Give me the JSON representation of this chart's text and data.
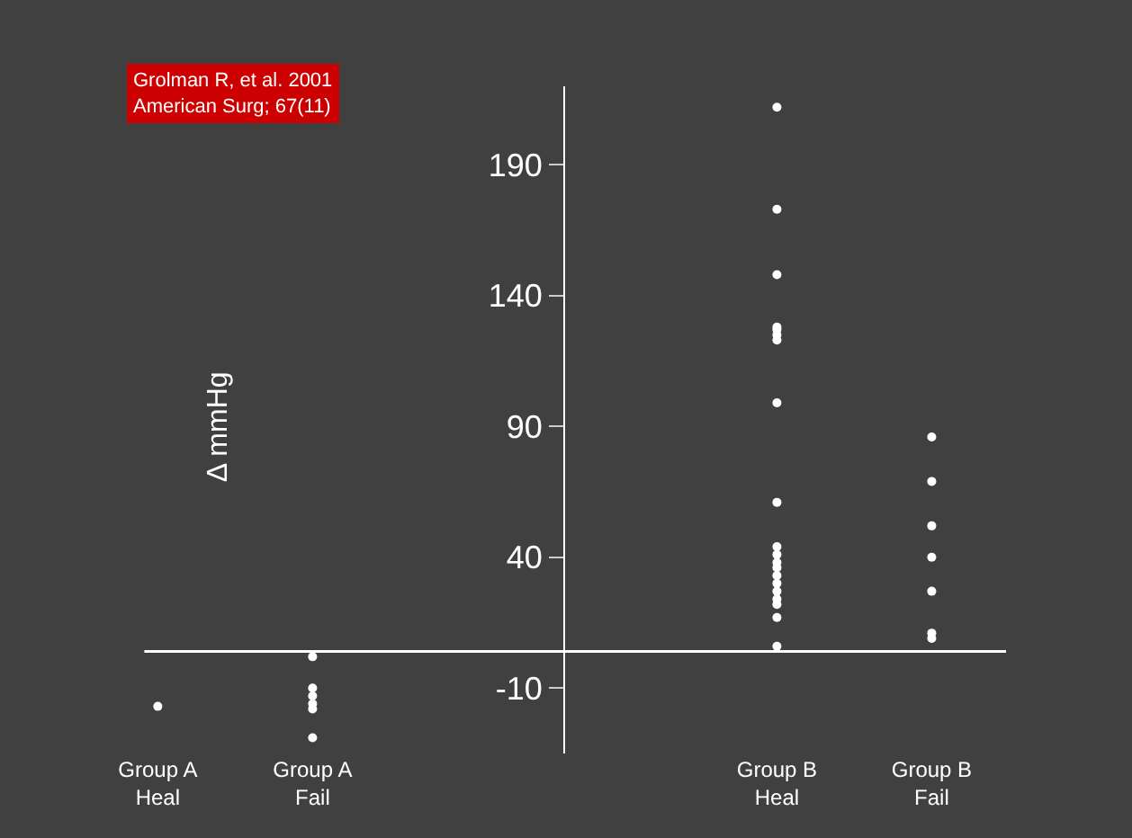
{
  "chart_data": {
    "type": "scatter",
    "ylabel": "Δ mmHg",
    "categories": [
      "Group A\nHeal",
      "Group A\nFail",
      null,
      null,
      "Group B\nHeal",
      "Group B\nFail"
    ],
    "series": [
      {
        "color": "#ffffff",
        "x": [
          "Group A\nHeal"
        ],
        "values": [
          -17
        ]
      },
      {
        "color": "#ffffff",
        "x": [
          "Group A\nFail",
          "Group A\nFail",
          "Group A\nFail",
          "Group A\nFail",
          "Group A\nFail",
          "Group A\nFail"
        ],
        "values": [
          2,
          -10,
          -13,
          -16,
          -18,
          -29
        ]
      },
      {
        "color": "#ffffff",
        "x": [
          "Group B\nHeal",
          "Group B\nHeal",
          "Group B\nHeal",
          "Group B\nHeal",
          "Group B\nHeal",
          "Group B\nHeal",
          "Group B\nHeal",
          "Group B\nHeal",
          "Group B\nHeal",
          "Group B\nHeal",
          "Group B\nHeal",
          "Group B\nHeal",
          "Group B\nHeal",
          "Group B\nHeal",
          "Group B\nHeal",
          "Group B\nHeal",
          "Group B\nHeal",
          "Group B\nHeal",
          "Group B\nHeal",
          "Group B\nHeal"
        ],
        "values": [
          212,
          173,
          148,
          128,
          127,
          125,
          123,
          99,
          61,
          44,
          41,
          38,
          36,
          33,
          30,
          27,
          24,
          22,
          17,
          6
        ]
      },
      {
        "color": "#ffffff",
        "x": [
          "Group B\nFail",
          "Group B\nFail",
          "Group B\nFail",
          "Group B\nFail",
          "Group B\nFail",
          "Group B\nFail",
          "Group B\nFail"
        ],
        "values": [
          86,
          69,
          52,
          40,
          27,
          11,
          9
        ]
      }
    ],
    "ylim": [
      -35,
      220
    ],
    "yticks": [
      -10,
      40,
      90,
      140,
      190
    ],
    "ref_lines": [
      {
        "axis": "y",
        "value": 4,
        "color": "#ffffff"
      }
    ],
    "marker": "circle",
    "grid": false,
    "annotations": [
      "Grolman R, et al. 2001\nAmerican Surg; 67(11)"
    ]
  }
}
